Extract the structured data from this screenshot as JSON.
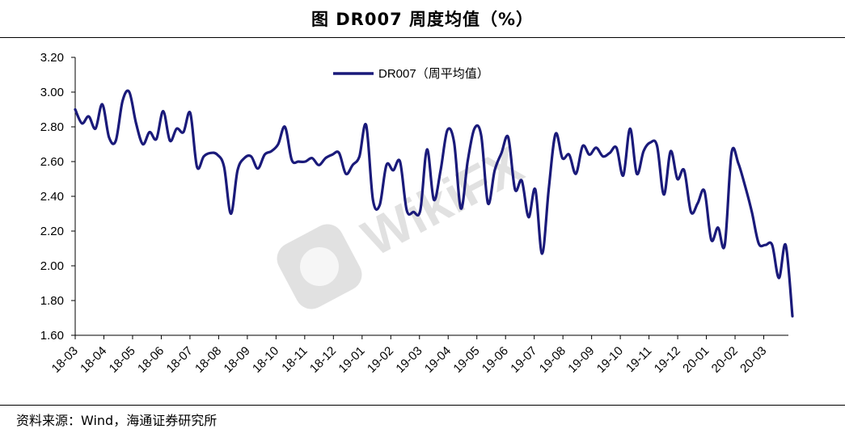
{
  "page": {
    "title": "图  DR007 周度均值（%）",
    "source": "资料来源：Wind，海通证券研究所",
    "watermark": "WikiFX"
  },
  "colors": {
    "line": "#1a1a7a",
    "axis": "#000000",
    "watermark": "#c9c9c9"
  },
  "chart_data": {
    "type": "line",
    "title": "DR007 周度均值（%）",
    "xlabel": "",
    "ylabel": "",
    "ylim": [
      1.6,
      3.2
    ],
    "yticks": [
      "3.20",
      "3.00",
      "2.80",
      "2.60",
      "2.40",
      "2.20",
      "2.00",
      "1.80",
      "1.60"
    ],
    "xticks": [
      "18-03",
      "18-04",
      "18-05",
      "18-06",
      "18-07",
      "18-08",
      "18-09",
      "18-10",
      "18-11",
      "18-12",
      "19-01",
      "19-02",
      "19-03",
      "19-04",
      "19-05",
      "19-06",
      "19-07",
      "19-08",
      "19-09",
      "19-10",
      "19-11",
      "19-12",
      "20-01",
      "20-02",
      "20-03"
    ],
    "grid": false,
    "legend": "top-center",
    "series": [
      {
        "name": "DR007（周平均值）",
        "values": [
          2.9,
          2.82,
          2.86,
          2.79,
          2.93,
          2.74,
          2.72,
          2.95,
          3.0,
          2.82,
          2.7,
          2.77,
          2.73,
          2.89,
          2.72,
          2.79,
          2.77,
          2.88,
          2.57,
          2.63,
          2.65,
          2.64,
          2.57,
          2.3,
          2.55,
          2.62,
          2.63,
          2.56,
          2.64,
          2.66,
          2.7,
          2.8,
          2.61,
          2.6,
          2.6,
          2.62,
          2.58,
          2.62,
          2.64,
          2.65,
          2.53,
          2.58,
          2.63,
          2.81,
          2.38,
          2.35,
          2.58,
          2.55,
          2.6,
          2.32,
          2.31,
          2.32,
          2.67,
          2.38,
          2.55,
          2.78,
          2.71,
          2.33,
          2.6,
          2.79,
          2.75,
          2.36,
          2.55,
          2.65,
          2.74,
          2.44,
          2.49,
          2.28,
          2.44,
          2.07,
          2.45,
          2.76,
          2.62,
          2.64,
          2.53,
          2.69,
          2.64,
          2.68,
          2.63,
          2.65,
          2.68,
          2.52,
          2.79,
          2.53,
          2.66,
          2.71,
          2.69,
          2.41,
          2.66,
          2.5,
          2.55,
          2.31,
          2.36,
          2.43,
          2.15,
          2.22,
          2.12,
          2.65,
          2.59,
          2.46,
          2.31,
          2.13,
          2.12,
          2.12,
          1.93,
          2.12,
          1.71
        ]
      }
    ]
  }
}
